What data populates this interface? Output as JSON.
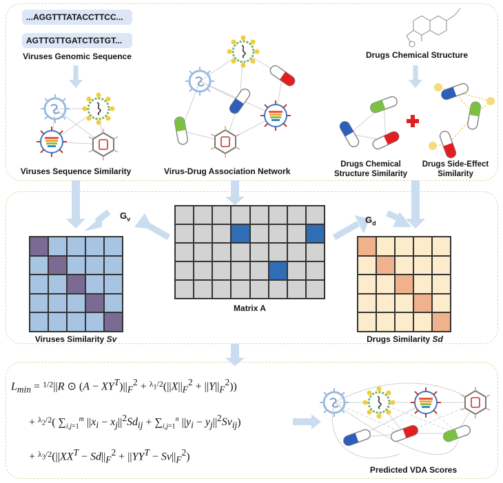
{
  "top": {
    "seq1": "...AGGTTTATACCTTCC...",
    "seq2": "AGTTGTTGATCTGTGT...",
    "viruses_genomic_sequence": "Viruses Genomic Sequence",
    "drugs_chemical_structure": "Drugs Chemical Structure",
    "viruses_sequence_similarity": "Viruses Sequence Similarity",
    "virus_drug_network": "Virus-Drug Association Network",
    "drugs_chemical_similarity_l1": "Drugs Chemical",
    "drugs_chemical_similarity_l2": "Structure Similarity",
    "drugs_side_effect_l1": "Drugs Side-Effect",
    "drugs_side_effect_l2": "Similarity"
  },
  "middle": {
    "gv": "G",
    "gv_sub": "v",
    "gd": "G",
    "gd_sub": "d",
    "matrix_a": "Matrix A",
    "viruses_similarity": "Viruses Similarity ",
    "viruses_similarity_sym": "Sv",
    "drugs_similarity": "Drugs Similarity ",
    "drugs_similarity_sym": "Sd"
  },
  "bottom": {
    "predicted": "Predicted VDA Scores"
  },
  "colors": {
    "panel_border": "#e2d6a8",
    "arrow": "#c9dcf0",
    "sv_cell": "#a7c4e2",
    "sv_diag": "#7b6a94",
    "sd_cell": "#fdeccb",
    "sd_diag": "#f0b28c",
    "a_cell": "#d3d3d3",
    "a_marked": "#2f6db5"
  }
}
